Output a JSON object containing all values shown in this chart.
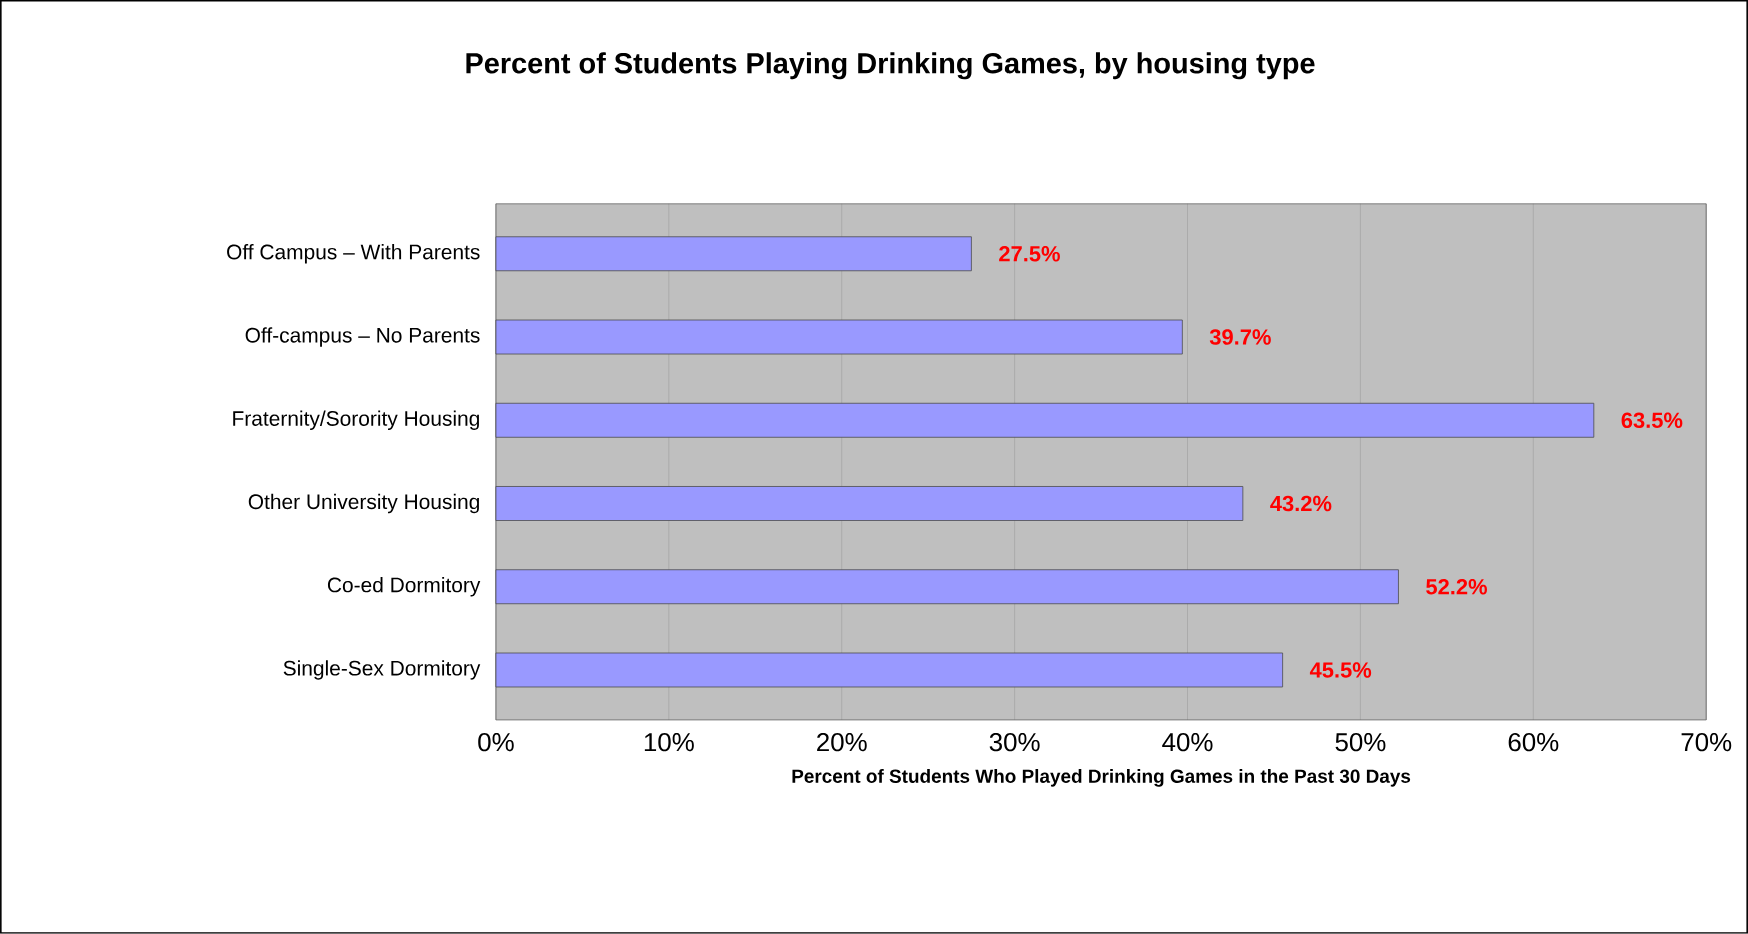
{
  "chart_data": {
    "type": "bar",
    "orientation": "horizontal",
    "title": "Percent of Students Playing Drinking Games, by housing type",
    "xlabel": "Percent of Students Who Played Drinking Games in the Past 30 Days",
    "categories": [
      "Off Campus – With Parents",
      "Off-campus – No Parents",
      "Fraternity/Sorority Housing",
      "Other University Housing",
      "Co-ed Dormitory",
      "Single-Sex Dormitory"
    ],
    "values": [
      27.5,
      39.7,
      63.5,
      43.2,
      52.2,
      45.5
    ],
    "value_labels": [
      "27.5%",
      "39.7%",
      "63.5%",
      "43.2%",
      "52.2%",
      "45.5%"
    ],
    "color": "#9999ff",
    "xlim": [
      0,
      70
    ],
    "xticks": [
      {
        "value": 0,
        "label": "0%"
      },
      {
        "value": 10,
        "label": "10%"
      },
      {
        "value": 20,
        "label": "20%"
      },
      {
        "value": 30,
        "label": "30%"
      },
      {
        "value": 40,
        "label": "40%"
      },
      {
        "value": 50,
        "label": "50%"
      },
      {
        "value": 60,
        "label": "60%"
      },
      {
        "value": 70,
        "label": "70%"
      }
    ],
    "grid": "x"
  }
}
